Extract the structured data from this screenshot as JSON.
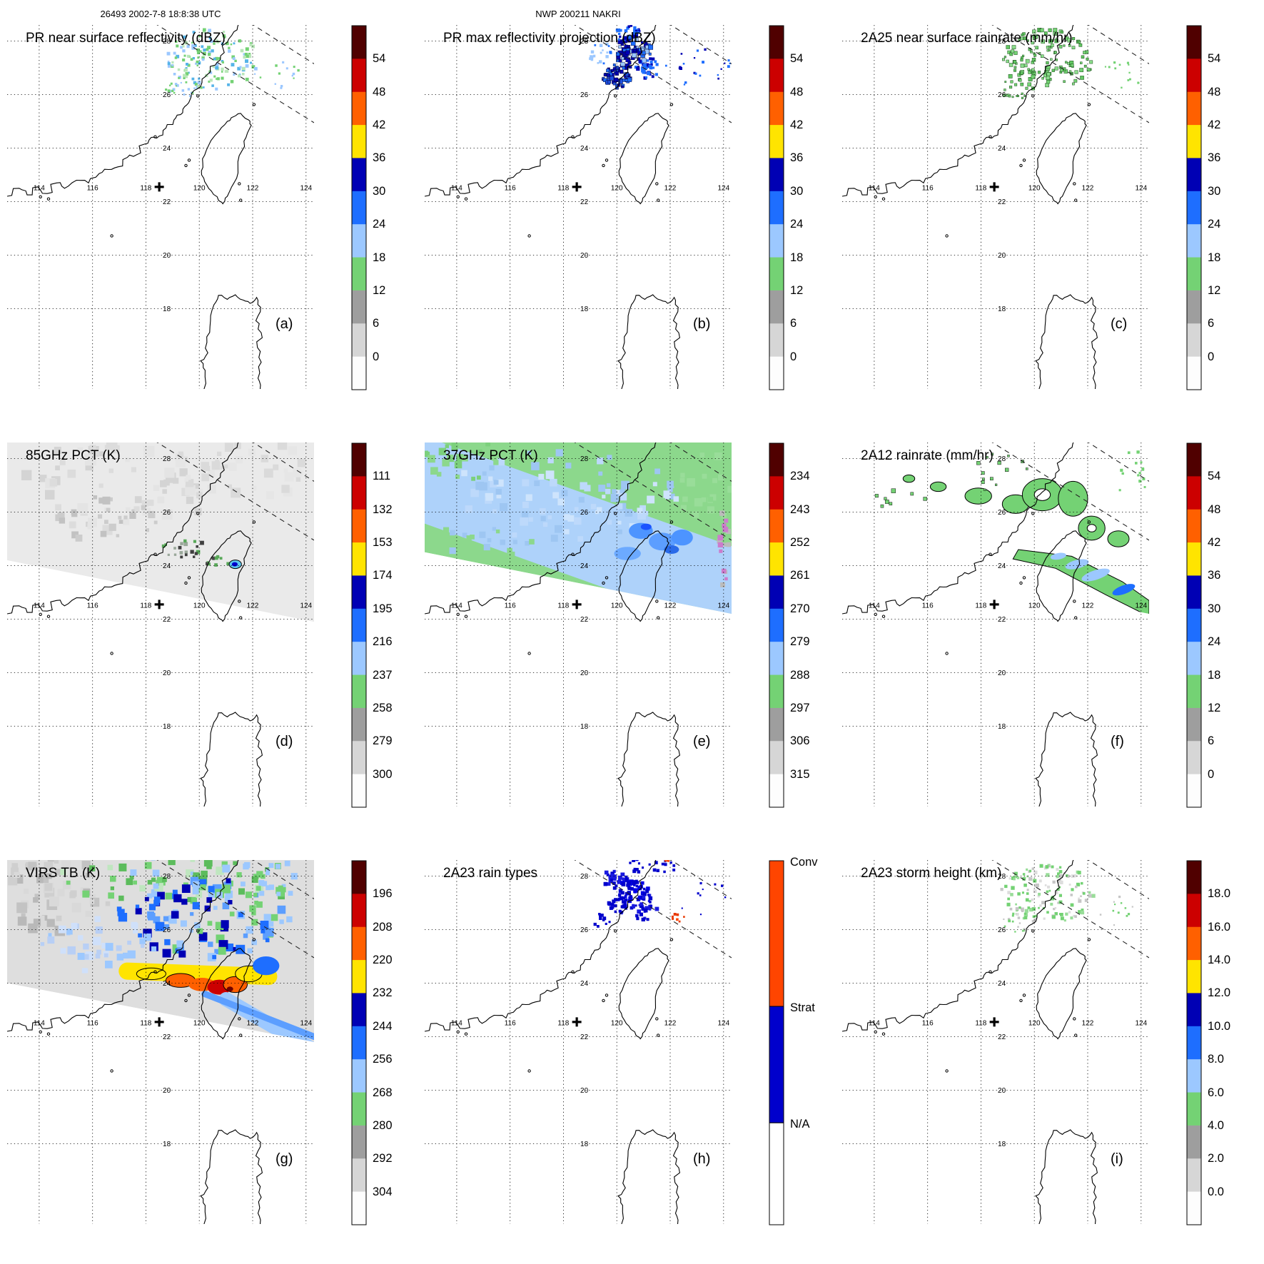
{
  "header": {
    "left": "26493 2002-7-8 18:8:38 UTC",
    "center": "NWP 200211 NAKRI"
  },
  "geo": {
    "lon_labels": [
      "114",
      "116",
      "118",
      "120",
      "122",
      "124"
    ],
    "lat_labels": [
      "18",
      "20",
      "22",
      "24",
      "26",
      "28"
    ],
    "lon_values": [
      114,
      116,
      118,
      120,
      122,
      124
    ],
    "lat_values": [
      18,
      20,
      22,
      24,
      26,
      28
    ],
    "lon_range": [
      112.8,
      124.3
    ],
    "lat_range": [
      15.0,
      28.6
    ],
    "center_marker": {
      "lon": 118.5,
      "lat": 22.55
    }
  },
  "palette": {
    "segments": [
      "#500000",
      "#cc0000",
      "#ff6000",
      "#ffe400",
      "#0000b4",
      "#1e6eff",
      "#9cc8ff",
      "#74d274",
      "#9e9e9e",
      "#d6d6d6",
      "#fdfdfd"
    ]
  },
  "panels": [
    {
      "id": "a",
      "title": "PR near surface reflectivity (dBZ)",
      "tag": "(a)",
      "cb": "dbz"
    },
    {
      "id": "b",
      "title": "PR max reflectivity projection (dBZ)",
      "tag": "(b)",
      "cb": "dbz"
    },
    {
      "id": "c",
      "title": "2A25 near surface rainrate (mm/hr)",
      "tag": "(c)",
      "cb": "dbz"
    },
    {
      "id": "d",
      "title": "85GHz PCT (K)",
      "tag": "(d)",
      "cb": "pct85"
    },
    {
      "id": "e",
      "title": "37GHz PCT (K)",
      "tag": "(e)",
      "cb": "pct37"
    },
    {
      "id": "f",
      "title": "2A12 rainrate (mm/hr)",
      "tag": "(f)",
      "cb": "dbz"
    },
    {
      "id": "g",
      "title": "VIRS TB (K)",
      "tag": "(g)",
      "cb": "virs"
    },
    {
      "id": "h",
      "title": "2A23 rain types",
      "tag": "(h)",
      "cb": "raintype"
    },
    {
      "id": "i",
      "title": "2A23 storm height (km)",
      "tag": "(i)",
      "cb": "height"
    }
  ],
  "colorbars": {
    "dbz": {
      "ticks": [
        "54",
        "48",
        "42",
        "36",
        "30",
        "24",
        "18",
        "12",
        "6",
        "0"
      ]
    },
    "pct85": {
      "ticks": [
        "111",
        "132",
        "153",
        "174",
        "195",
        "216",
        "237",
        "258",
        "279",
        "300"
      ]
    },
    "pct37": {
      "ticks": [
        "234",
        "243",
        "252",
        "261",
        "270",
        "279",
        "288",
        "297",
        "306",
        "315"
      ]
    },
    "virs": {
      "ticks": [
        "196",
        "208",
        "220",
        "232",
        "244",
        "256",
        "268",
        "280",
        "292",
        "304"
      ]
    },
    "height": {
      "ticks": [
        "18.0",
        "16.0",
        "14.0",
        "12.0",
        "10.0",
        "8.0",
        "6.0",
        "4.0",
        "2.0",
        "0.0"
      ]
    },
    "raintype": {
      "labels": [
        "Conv",
        "Strat",
        "N/A"
      ],
      "colors": [
        "#ff4500",
        "#0000cc",
        "#ffffff"
      ],
      "stops": [
        0,
        0.4,
        0.72
      ]
    }
  },
  "chart_data": [
    {
      "type": "heatmap",
      "panel": "a",
      "title": "PR near surface reflectivity (dBZ)",
      "units": "dBZ",
      "colorbar_ticks": [
        54,
        48,
        42,
        36,
        30,
        24,
        18,
        12,
        6,
        0
      ],
      "lon_gridlines": [
        114,
        116,
        118,
        120,
        122,
        124
      ],
      "lat_gridlines": [
        18,
        20,
        22,
        24,
        26,
        28
      ],
      "storm_center_lonlat": [
        118.5,
        22.5
      ],
      "features": "Scattered weak echoes 12-30 dBZ (green and light-blue speckles) between 25.5-28.5N and 118.5-123E; dashed PR swath edge lines in upper right; coastlines of SE China, Taiwan and Luzon; plus sign marks Typhoon Nakri center near 118.5E 22.5N."
    },
    {
      "type": "heatmap",
      "panel": "b",
      "title": "PR max reflectivity projection (dBZ)",
      "units": "dBZ",
      "colorbar_ticks": [
        54,
        48,
        42,
        36,
        30,
        24,
        18,
        12,
        6,
        0
      ],
      "features": "Denser clusters of 24-36 dBZ (blue to dark-blue) echoes over 26-28.5N, 119-121.5E with scattered small cells eastward to 124.5E."
    },
    {
      "type": "heatmap",
      "panel": "c",
      "title": "2A25 near surface rainrate (mm/hr)",
      "units": "mm/hr",
      "colorbar_ticks": [
        54,
        48,
        42,
        36,
        30,
        24,
        18,
        12,
        6,
        0
      ],
      "features": "Light rain rates below about 12 mm/hr (dark-outlined green speckles) over 25.5-28.5N, 118.5-123E."
    },
    {
      "type": "heatmap",
      "panel": "d",
      "title": "85GHz PCT (K)",
      "units": "K",
      "colorbar_ticks": [
        111,
        132,
        153,
        174,
        195,
        216,
        237,
        258,
        279,
        300
      ],
      "features": "Wide TMI swath of warm PCT 255-300K (light gray shades); small cold depression near 174-216K (blue spot ringed by cyan) near 121.3E 24.1N; dark and green speckles along 24-24.7N, 119-121E; area south of the diagonal swath edge has no data."
    },
    {
      "type": "heatmap",
      "panel": "e",
      "title": "37GHz PCT (K)",
      "units": "K",
      "colorbar_ticks": [
        234,
        243,
        252,
        261,
        270,
        279,
        288,
        297,
        306,
        315
      ],
      "features": "Broad 270-282K (pale blue) diagonal band across the swath flanked by 285-295K (green); deeper blue 261-270K patches north and east of Taiwan; a few pink/gray pixels on the far east swath edge."
    },
    {
      "type": "heatmap",
      "panel": "f",
      "title": "2A12 rainrate (mm/hr)",
      "units": "mm/hr",
      "colorbar_ticks": [
        54,
        48,
        42,
        36,
        30,
        24,
        18,
        12,
        6,
        0
      ],
      "features": "Black-outlined light-rain areas under 12 mm/hr (green blobs, some annular) over 24.5-27.5N, 115-124E, and a green band along the SE swath edge containing 12-30 mm/hr (blue) streaks east and southeast of Taiwan."
    },
    {
      "type": "heatmap",
      "panel": "g",
      "title": "VIRS TB (K)",
      "units": "K",
      "colorbar_ticks": [
        196,
        208,
        220,
        232,
        244,
        256,
        268,
        280,
        292,
        304
      ],
      "features": "Cold cloud shield 232-256K (blue mottle) over 24.5-28N; colder 208-232K band (yellow/orange/red, small dark-red core) along 23.7-24.4N from 118-122E near the swath edge; warm 280-304K (gray) to the northwest; ~268K green patches along the north."
    },
    {
      "type": "categorical-map",
      "panel": "h",
      "title": "2A23 rain types",
      "categories": [
        "Conv",
        "Strat",
        "N/A"
      ],
      "category_colors": [
        "#ff4500",
        "#0000cc",
        "#ffffff"
      ],
      "features": "Stratiform (blue) rain clusters over 26-28.5N, 119-122E; a few convective (red-orange) pixels near 26.5N 122.3E and 28.5N 122E; scattered blue pixels east to 124.5E."
    },
    {
      "type": "heatmap",
      "panel": "i",
      "title": "2A23 storm height (km)",
      "units": "km",
      "colorbar_ticks": [
        18.0,
        16.0,
        14.0,
        12.0,
        10.0,
        8.0,
        6.0,
        4.0,
        2.0,
        0.0
      ],
      "features": "Storm heights mostly 4-8 km (green speckles) with some low gray pixels over 25.5-28.5N, 118.5-123E."
    }
  ]
}
